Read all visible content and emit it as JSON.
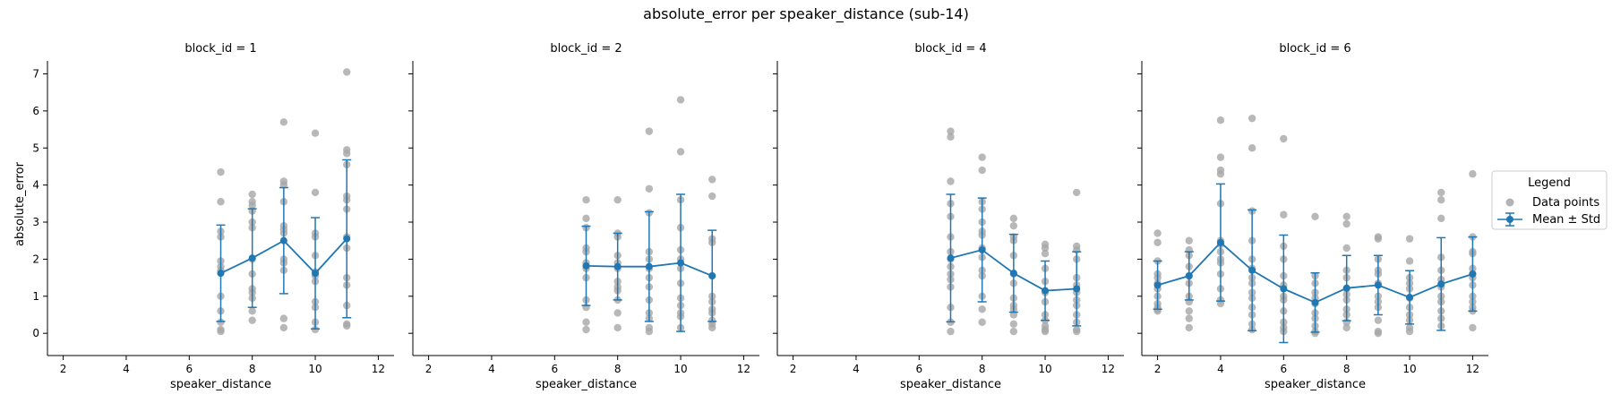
{
  "figure": {
    "title": "absolute_error per speaker_distance (sub-14)",
    "ylabel": "absolute_error"
  },
  "legend": {
    "title": "Legend",
    "items": [
      {
        "label": "Data points",
        "kind": "scatter",
        "color": "#a6a6a6"
      },
      {
        "label": "Mean ± Std",
        "kind": "errorbar",
        "color": "#1f77b4"
      }
    ]
  },
  "colors": {
    "points": "#a6a6a6",
    "mean": "#1f77b4",
    "axis": "#000000"
  },
  "chart_data": [
    {
      "type": "scatter",
      "title": "block_id = 1",
      "xlabel": "speaker_distance",
      "ylabel": "absolute_error",
      "xlim": [
        1.5,
        12.5
      ],
      "ylim": [
        -0.6,
        7.35
      ],
      "xticks": [
        2,
        4,
        6,
        8,
        10,
        12
      ],
      "yticks": [
        0,
        1,
        2,
        3,
        4,
        5,
        6,
        7
      ],
      "grid": false,
      "legend": "outside-right",
      "points": {
        "x": [
          7,
          7,
          7,
          7,
          7,
          7,
          7,
          7,
          7,
          7,
          7,
          7,
          8,
          8,
          8,
          8,
          8,
          8,
          8,
          8,
          8,
          8,
          8,
          8,
          8,
          9,
          9,
          9,
          9,
          9,
          9,
          9,
          9,
          9,
          9,
          9,
          9,
          10,
          10,
          10,
          10,
          10,
          10,
          10,
          10,
          10,
          10,
          10,
          10,
          11,
          11,
          11,
          11,
          11,
          11,
          11,
          11,
          11,
          11,
          11,
          11,
          11,
          11
        ],
        "y": [
          4.35,
          3.55,
          2.75,
          2.6,
          1.95,
          1.8,
          1.7,
          1.0,
          0.6,
          0.3,
          0.1,
          0.05,
          3.75,
          3.55,
          3.45,
          3.3,
          3.0,
          2.85,
          2.0,
          1.6,
          1.2,
          1.1,
          0.95,
          0.6,
          0.35,
          5.7,
          4.1,
          4.0,
          3.55,
          2.9,
          2.8,
          2.7,
          2.0,
          1.9,
          1.7,
          0.4,
          0.15,
          5.4,
          3.8,
          2.7,
          2.6,
          2.1,
          1.65,
          1.55,
          1.4,
          0.85,
          0.7,
          0.3,
          0.1,
          7.05,
          4.95,
          4.85,
          4.55,
          3.7,
          3.6,
          3.35,
          2.6,
          2.3,
          1.5,
          1.3,
          0.75,
          0.25,
          0.2
        ]
      },
      "series": [
        {
          "name": "Mean ± Std",
          "x": [
            7,
            8,
            9,
            10,
            11
          ],
          "mean": [
            1.62,
            2.03,
            2.5,
            1.62,
            2.55
          ],
          "std": [
            1.3,
            1.33,
            1.43,
            1.5,
            2.13
          ]
        }
      ]
    },
    {
      "type": "scatter",
      "title": "block_id = 2",
      "xlabel": "speaker_distance",
      "ylabel": "",
      "xlim": [
        1.5,
        12.5
      ],
      "ylim": [
        -0.6,
        7.35
      ],
      "xticks": [
        2,
        4,
        6,
        8,
        10,
        12
      ],
      "yticks": [
        0,
        1,
        2,
        3,
        4,
        5,
        6,
        7
      ],
      "grid": false,
      "points": {
        "x": [
          7,
          7,
          7,
          7,
          7,
          7,
          7,
          7,
          7,
          7,
          7,
          7,
          8,
          8,
          8,
          8,
          8,
          8,
          8,
          8,
          8,
          8,
          8,
          8,
          9,
          9,
          9,
          9,
          9,
          9,
          9,
          9,
          9,
          9,
          9,
          9,
          9,
          10,
          10,
          10,
          10,
          10,
          10,
          10,
          10,
          10,
          10,
          10,
          10,
          10,
          11,
          11,
          11,
          11,
          11,
          11,
          11,
          11,
          11,
          11,
          11,
          11
        ],
        "y": [
          3.6,
          3.1,
          2.85,
          2.3,
          2.2,
          1.9,
          1.75,
          1.5,
          0.9,
          0.7,
          0.3,
          0.1,
          3.6,
          2.7,
          2.6,
          2.1,
          1.9,
          1.75,
          1.4,
          1.25,
          1.15,
          0.9,
          0.55,
          0.15,
          5.45,
          3.9,
          3.25,
          2.2,
          2.0,
          1.75,
          1.5,
          1.25,
          0.9,
          0.55,
          0.4,
          0.15,
          0.05,
          6.3,
          4.9,
          3.6,
          2.85,
          2.25,
          2.0,
          1.75,
          1.35,
          0.95,
          0.75,
          0.55,
          0.45,
          0.15,
          4.15,
          3.7,
          2.55,
          2.45,
          1.55,
          1.0,
          0.85,
          0.65,
          0.55,
          0.35,
          0.25,
          0.15
        ]
      },
      "series": [
        {
          "name": "Mean ± Std",
          "x": [
            7,
            8,
            9,
            10,
            11
          ],
          "mean": [
            1.82,
            1.8,
            1.8,
            1.9,
            1.55
          ],
          "std": [
            1.07,
            0.9,
            1.48,
            1.85,
            1.23
          ]
        }
      ]
    },
    {
      "type": "scatter",
      "title": "block_id = 4",
      "xlabel": "speaker_distance",
      "ylabel": "",
      "xlim": [
        1.5,
        12.5
      ],
      "ylim": [
        -0.6,
        7.35
      ],
      "xticks": [
        2,
        4,
        6,
        8,
        10,
        12
      ],
      "yticks": [
        0,
        1,
        2,
        3,
        4,
        5,
        6,
        7
      ],
      "grid": false,
      "points": {
        "x": [
          7,
          7,
          7,
          7,
          7,
          7,
          7,
          7,
          7,
          7,
          7,
          7,
          7,
          7,
          7,
          8,
          8,
          8,
          8,
          8,
          8,
          8,
          8,
          8,
          8,
          8,
          8,
          8,
          8,
          9,
          9,
          9,
          9,
          9,
          9,
          9,
          9,
          9,
          9,
          9,
          9,
          9,
          10,
          10,
          10,
          10,
          10,
          10,
          10,
          10,
          10,
          10,
          10,
          10,
          11,
          11,
          11,
          11,
          11,
          11,
          11,
          11,
          11,
          11,
          11,
          11,
          11
        ],
        "y": [
          5.45,
          5.3,
          4.1,
          3.5,
          3.15,
          2.6,
          2.2,
          2.0,
          1.8,
          1.6,
          1.45,
          1.25,
          0.7,
          0.3,
          0.05,
          4.75,
          4.4,
          3.55,
          3.35,
          3.0,
          2.75,
          2.65,
          2.3,
          2.05,
          1.7,
          1.55,
          1.0,
          0.65,
          0.3,
          3.1,
          2.9,
          2.6,
          2.5,
          2.1,
          1.6,
          1.35,
          0.95,
          0.75,
          0.65,
          0.5,
          0.25,
          0.05,
          2.4,
          2.3,
          2.15,
          1.75,
          1.4,
          1.1,
          0.85,
          0.5,
          0.35,
          0.2,
          0.1,
          0.05,
          3.8,
          2.35,
          2.25,
          2.0,
          1.5,
          1.3,
          1.1,
          0.9,
          0.75,
          0.5,
          0.3,
          0.1,
          0.05
        ]
      },
      "series": [
        {
          "name": "Mean ± Std",
          "x": [
            7,
            8,
            9,
            10,
            11
          ],
          "mean": [
            2.03,
            2.25,
            1.62,
            1.15,
            1.2
          ],
          "std": [
            1.72,
            1.4,
            1.05,
            0.8,
            1.0
          ]
        }
      ]
    },
    {
      "type": "scatter",
      "title": "block_id = 6",
      "xlabel": "speaker_distance",
      "ylabel": "",
      "xlim": [
        1.5,
        12.5
      ],
      "ylim": [
        -0.6,
        7.35
      ],
      "xticks": [
        2,
        4,
        6,
        8,
        10,
        12
      ],
      "yticks": [
        0,
        1,
        2,
        3,
        4,
        5,
        6,
        7
      ],
      "grid": false,
      "points": {
        "x": [
          2,
          2,
          2,
          2,
          2,
          2,
          2,
          2,
          2,
          2,
          2,
          2,
          3,
          3,
          3,
          3,
          3,
          3,
          3,
          3,
          3,
          3,
          3,
          4,
          4,
          4,
          4,
          4,
          4,
          4,
          4,
          4,
          4,
          4,
          4,
          4,
          4,
          5,
          5,
          5,
          5,
          5,
          5,
          5,
          5,
          5,
          5,
          5,
          5,
          5,
          5,
          6,
          6,
          6,
          6,
          6,
          6,
          6,
          6,
          6,
          6,
          6,
          6,
          7,
          7,
          7,
          7,
          7,
          7,
          7,
          7,
          7,
          7,
          7,
          8,
          8,
          8,
          8,
          8,
          8,
          8,
          8,
          8,
          8,
          8,
          8,
          9,
          9,
          9,
          9,
          9,
          9,
          9,
          9,
          9,
          9,
          9,
          9,
          10,
          10,
          10,
          10,
          10,
          10,
          10,
          10,
          10,
          10,
          10,
          11,
          11,
          11,
          11,
          11,
          11,
          11,
          11,
          11,
          11,
          11,
          11,
          12,
          12,
          12,
          12,
          12,
          12,
          12,
          12,
          12,
          12,
          12,
          12,
          12
        ],
        "y": [
          2.7,
          2.45,
          1.95,
          1.6,
          1.5,
          1.35,
          1.2,
          1.0,
          0.8,
          0.7,
          0.65,
          0.6,
          2.5,
          2.25,
          2.1,
          1.8,
          1.55,
          1.35,
          1.0,
          0.85,
          0.6,
          0.4,
          0.15,
          5.75,
          4.75,
          4.4,
          4.3,
          3.5,
          2.5,
          2.4,
          2.2,
          2.0,
          1.9,
          1.6,
          1.2,
          0.9,
          0.8,
          5.8,
          5.0,
          3.3,
          2.5,
          2.0,
          1.75,
          1.5,
          1.35,
          1.1,
          0.95,
          0.7,
          0.5,
          0.25,
          0.1,
          5.25,
          3.2,
          2.35,
          2.0,
          1.55,
          1.3,
          1.0,
          0.9,
          0.6,
          0.3,
          0.15,
          0.05,
          3.15,
          1.55,
          1.35,
          1.1,
          0.95,
          0.8,
          0.55,
          0.4,
          0.2,
          0.05,
          0.0,
          3.15,
          2.95,
          2.3,
          1.7,
          1.5,
          1.2,
          1.05,
          0.9,
          0.65,
          0.5,
          0.3,
          0.15,
          2.6,
          2.55,
          2.0,
          1.7,
          1.6,
          1.35,
          1.0,
          0.85,
          0.7,
          0.35,
          0.05,
          0.0,
          2.55,
          1.95,
          1.5,
          1.35,
          1.2,
          0.95,
          0.7,
          0.5,
          0.35,
          0.15,
          0.05,
          3.8,
          3.6,
          3.1,
          2.05,
          1.7,
          1.45,
          1.25,
          1.0,
          0.85,
          0.6,
          0.4,
          0.2,
          4.3,
          2.6,
          2.2,
          2.15,
          1.75,
          1.6,
          1.5,
          1.3,
          1.0,
          0.85,
          0.7,
          0.6,
          0.15
        ]
      },
      "series": [
        {
          "name": "Mean ± Std",
          "x": [
            2,
            3,
            4,
            5,
            6,
            7,
            8,
            9,
            10,
            11,
            12
          ],
          "mean": [
            1.3,
            1.55,
            2.45,
            1.7,
            1.2,
            0.83,
            1.22,
            1.3,
            0.97,
            1.33,
            1.6
          ],
          "std": [
            0.65,
            0.65,
            1.58,
            1.63,
            1.45,
            0.8,
            0.88,
            0.8,
            0.72,
            1.25,
            1.0
          ]
        }
      ]
    }
  ]
}
